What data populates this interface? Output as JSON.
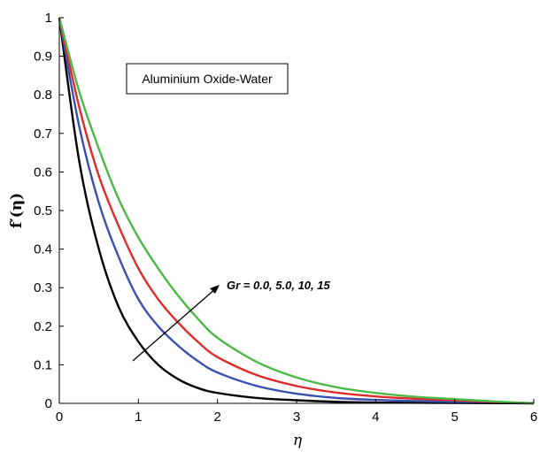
{
  "chart_data": {
    "type": "line",
    "title": "",
    "xlabel": "η",
    "ylabel": "f′(η)",
    "xlim": [
      0,
      6
    ],
    "ylim": [
      0,
      1
    ],
    "xticks": [
      0,
      1,
      2,
      3,
      4,
      5,
      6
    ],
    "xtick_labels": [
      "0",
      "1",
      "2",
      "3",
      "4",
      "5",
      "6"
    ],
    "yticks": [
      0,
      0.1,
      0.2,
      0.3,
      0.4,
      0.5,
      0.6,
      0.7,
      0.8,
      0.9,
      1
    ],
    "ytick_labels": [
      "0",
      "0.1",
      "0.2",
      "0.3",
      "0.4",
      "0.5",
      "0.6",
      "0.7",
      "0.8",
      "0.9",
      "1"
    ],
    "grid": false,
    "legend_box": "Aluminium Oxide-Water",
    "annotation": "Gr = 0.0, 5.0, 10, 15",
    "x": [
      0,
      0.25,
      0.5,
      0.75,
      1.0,
      1.25,
      1.5,
      1.75,
      2.0,
      2.5,
      3.0,
      3.5,
      4.0,
      4.5,
      5.0,
      5.5,
      6.0
    ],
    "series": [
      {
        "color": "#000000",
        "values": [
          1.0,
          0.63,
          0.4,
          0.25,
          0.16,
          0.1,
          0.063,
          0.04,
          0.027,
          0.014,
          0.008,
          0.004,
          0.002,
          0.0015,
          0.001,
          0.0005,
          0.0
        ]
      },
      {
        "color": "#3a4fb0",
        "values": [
          1.0,
          0.72,
          0.52,
          0.38,
          0.27,
          0.2,
          0.15,
          0.11,
          0.08,
          0.045,
          0.025,
          0.014,
          0.009,
          0.006,
          0.004,
          0.002,
          0.0
        ]
      },
      {
        "color": "#e02a2a",
        "values": [
          1.0,
          0.77,
          0.59,
          0.46,
          0.35,
          0.27,
          0.21,
          0.16,
          0.12,
          0.073,
          0.045,
          0.028,
          0.018,
          0.012,
          0.008,
          0.004,
          0.0
        ]
      },
      {
        "color": "#4cb848",
        "values": [
          1.0,
          0.81,
          0.66,
          0.53,
          0.43,
          0.35,
          0.28,
          0.22,
          0.17,
          0.107,
          0.067,
          0.042,
          0.027,
          0.017,
          0.011,
          0.005,
          0.0
        ]
      }
    ]
  }
}
